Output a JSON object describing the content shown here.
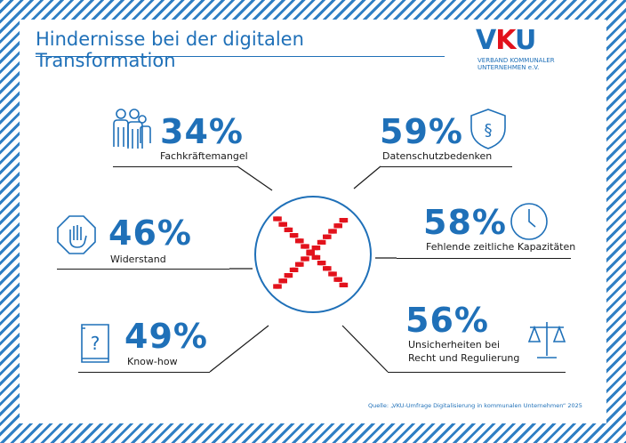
{
  "title": "Hindernisse bei der digitalen Transformation",
  "logo": {
    "mark_left": "V",
    "mark_middle": "K",
    "mark_right": "U",
    "line1": "VERBAND KOMMUNALER",
    "line2": "UNTERNEHMEN e.V."
  },
  "items": [
    {
      "percent": "34%",
      "label": "Fachkräftemangel",
      "icon": "people-icon"
    },
    {
      "percent": "59%",
      "label": "Datenschutzbedenken",
      "icon": "shield-paragraph-icon"
    },
    {
      "percent": "46%",
      "label": "Widerstand",
      "icon": "stop-hand-icon"
    },
    {
      "percent": "58%",
      "label": "Fehlende zeitliche Kapazitäten",
      "icon": "clock-icon"
    },
    {
      "percent": "49%",
      "label": "Know-how",
      "icon": "question-book-icon"
    },
    {
      "percent": "56%",
      "label_line1": "Unsicherheiten bei",
      "label_line2": "Recht und Regulierung",
      "icon": "scales-icon"
    }
  ],
  "center_icon": "red-x-icon",
  "source": "Quelle: „VKU-Umfrage Digitalisierung in kommunalen Unternehmen“ 2025",
  "colors": {
    "brand_blue": "#1f70b8",
    "accent_red": "#e2121c"
  }
}
